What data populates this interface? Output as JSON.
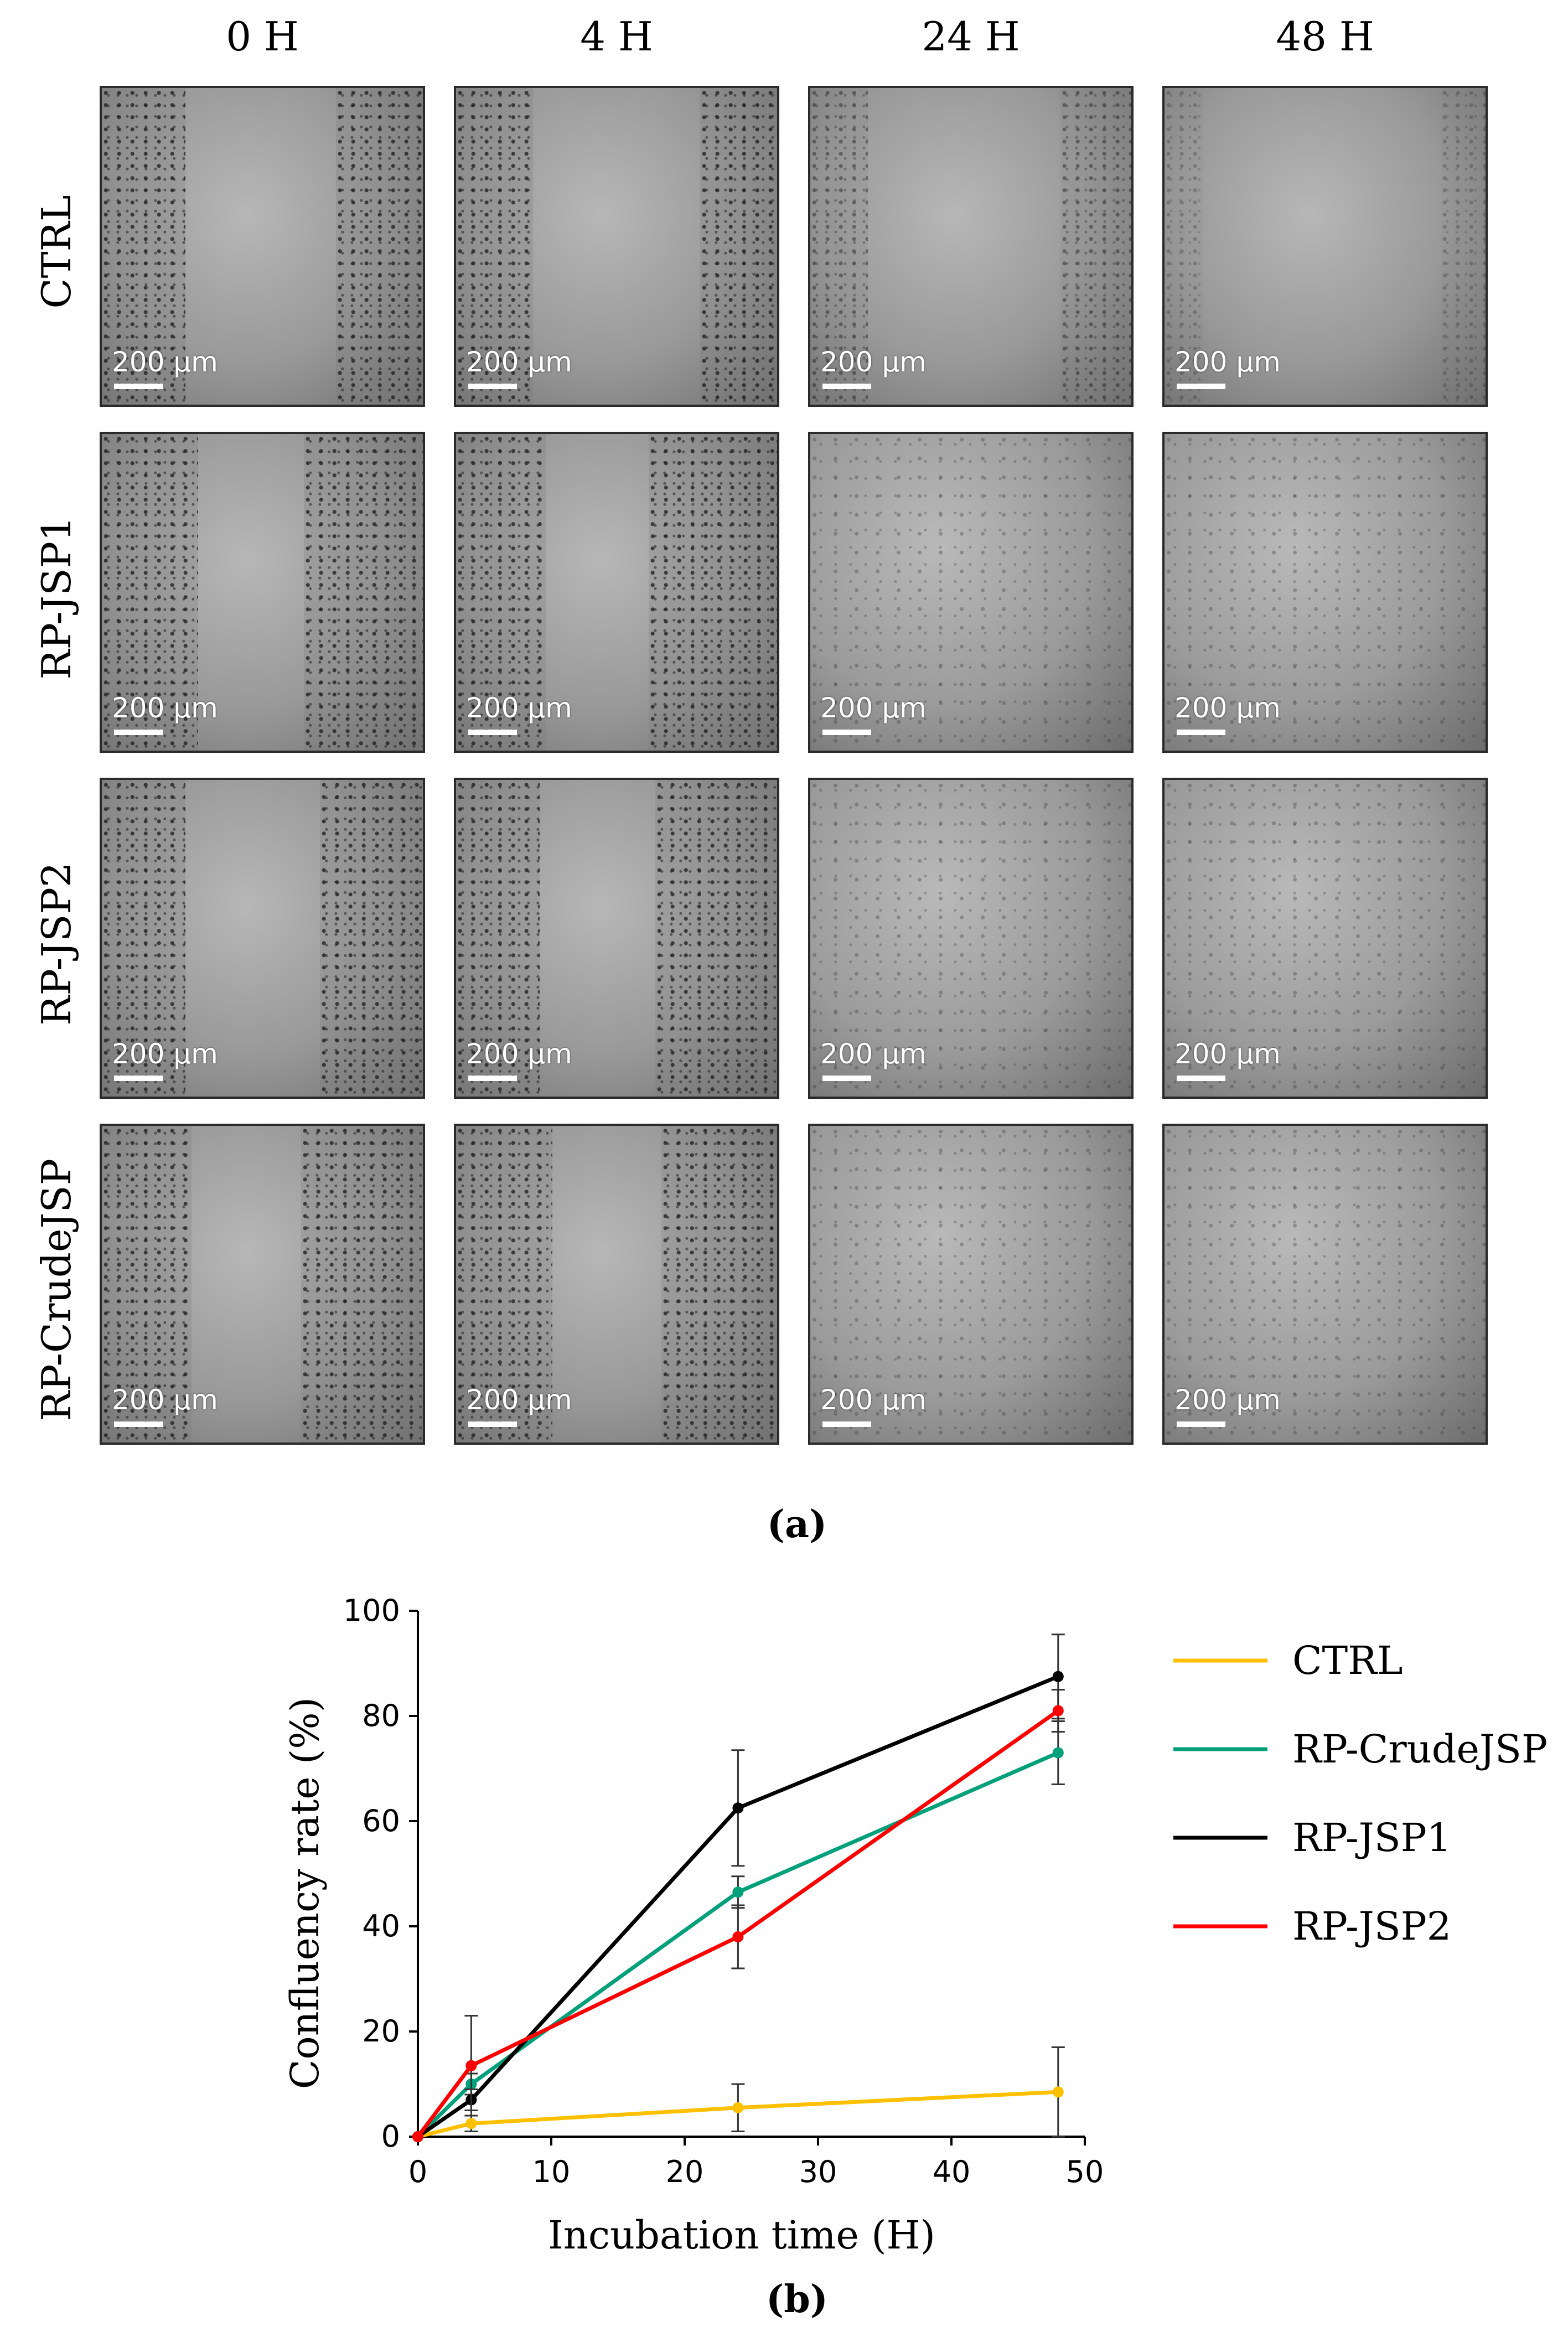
{
  "panel_a": {
    "label": "(a)",
    "columns": [
      "0 H",
      "4 H",
      "24 H",
      "48 H"
    ],
    "rows": [
      "CTRL",
      "RP-JSP1",
      "RP-JSP2",
      "RP-CrudeJSP"
    ],
    "scale_text": "200 µm"
  },
  "panel_b": {
    "label": "(b)"
  },
  "chart_data": {
    "type": "line",
    "title": "",
    "xlabel": "Incubation time (H)",
    "ylabel": "Confluency rate (%)",
    "xlim": [
      0,
      50
    ],
    "ylim": [
      0,
      100
    ],
    "xticks": [
      0,
      10,
      20,
      30,
      40,
      50
    ],
    "yticks": [
      0,
      20,
      40,
      60,
      80,
      100
    ],
    "grid": false,
    "legend_position": "right",
    "x": [
      0,
      4,
      24,
      48
    ],
    "series": [
      {
        "name": "CTRL",
        "color": "#FFC000",
        "values": [
          0,
          2.5,
          5.5,
          8.5
        ],
        "errors": [
          0,
          1.5,
          4.5,
          8.5
        ]
      },
      {
        "name": "RP-CrudeJSP",
        "color": "#00A07A",
        "values": [
          0,
          10,
          46.5,
          73
        ],
        "errors": [
          0,
          2,
          3,
          6
        ]
      },
      {
        "name": "RP-JSP1",
        "color": "#000000",
        "values": [
          0,
          7,
          62.5,
          87.5
        ],
        "errors": [
          0,
          2,
          11,
          8
        ]
      },
      {
        "name": "RP-JSP2",
        "color": "#FF0000",
        "values": [
          0,
          13.5,
          38,
          81
        ],
        "errors": [
          0,
          9.5,
          6,
          4
        ]
      }
    ]
  }
}
